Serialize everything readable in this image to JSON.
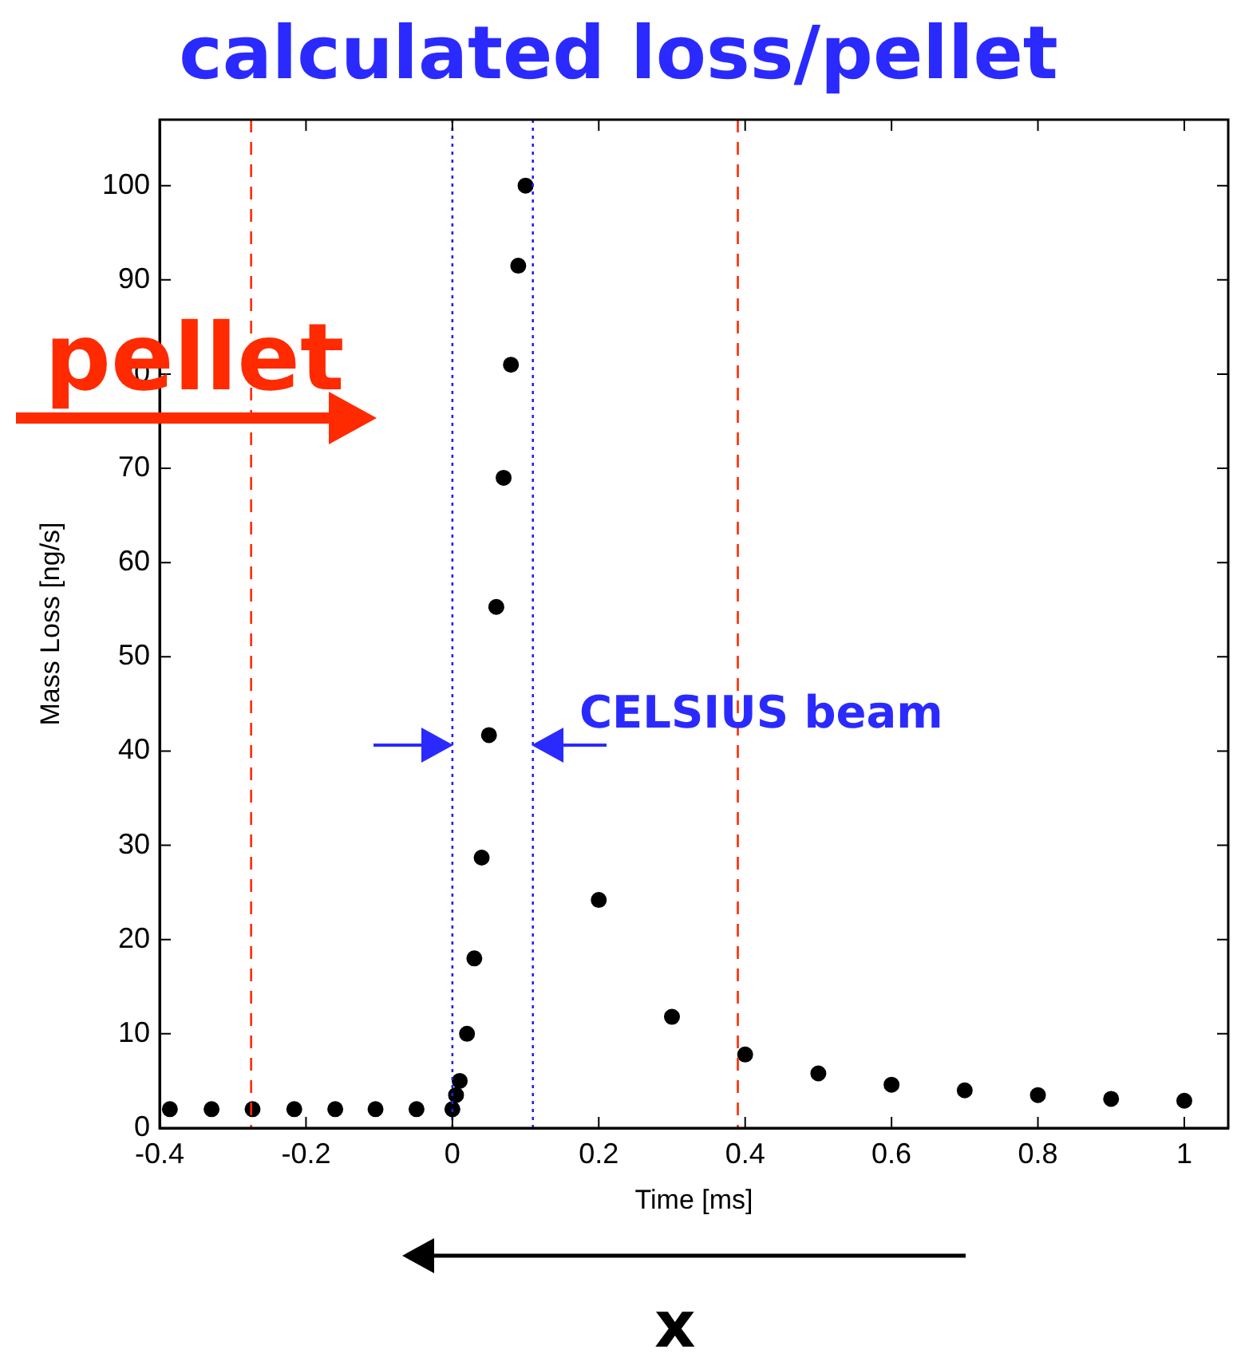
{
  "chart_data": {
    "type": "scatter",
    "title": "calculated loss/pellet",
    "xlabel": "Time [ms]",
    "ylabel": "Mass Loss [ng/s]",
    "x": [
      -0.386,
      -0.329,
      -0.273,
      -0.216,
      -0.16,
      -0.105,
      -0.049,
      0,
      0.005,
      0.01,
      0.02,
      0.03,
      0.04,
      0.05,
      0.06,
      0.07,
      0.08,
      0.09,
      0.1,
      0.2,
      0.3,
      0.4,
      0.5,
      0.6,
      0.7,
      0.8,
      0.9,
      1
    ],
    "series": [
      {
        "color": "#000000",
        "values": [
          2,
          2,
          2,
          2,
          2,
          2,
          2,
          2,
          3.5,
          5,
          10,
          18,
          28.7,
          41.7,
          55.3,
          69,
          81,
          91.5,
          100,
          24.2,
          11.8,
          7.8,
          5.8,
          4.6,
          4,
          3.5,
          3.1,
          2.9
        ]
      }
    ],
    "xlim": [
      -0.4,
      1.06
    ],
    "xticks": [
      -0.4,
      -0.2,
      0,
      0.2,
      0.4,
      0.6,
      0.8,
      1
    ],
    "ylim": [
      0,
      107
    ],
    "yticks": [
      0,
      10,
      20,
      30,
      40,
      50,
      60,
      70,
      80,
      90,
      100
    ],
    "ref_lines": [
      {
        "axis": "x",
        "value": -0.275,
        "color": "#ff2a00",
        "line_style": "dashed"
      },
      {
        "axis": "x",
        "value": 0.39,
        "color": "#ff2a00",
        "line_style": "dashed"
      },
      {
        "axis": "x",
        "value": 0,
        "color": "#2020ff",
        "line_style": "dotted"
      },
      {
        "axis": "x",
        "value": 0.11,
        "color": "#2020ff",
        "line_style": "dotted"
      }
    ],
    "annotations": [
      "pellet",
      "CELSIUS beam",
      "x"
    ],
    "marker": "circle",
    "grid": false,
    "legend": false
  }
}
